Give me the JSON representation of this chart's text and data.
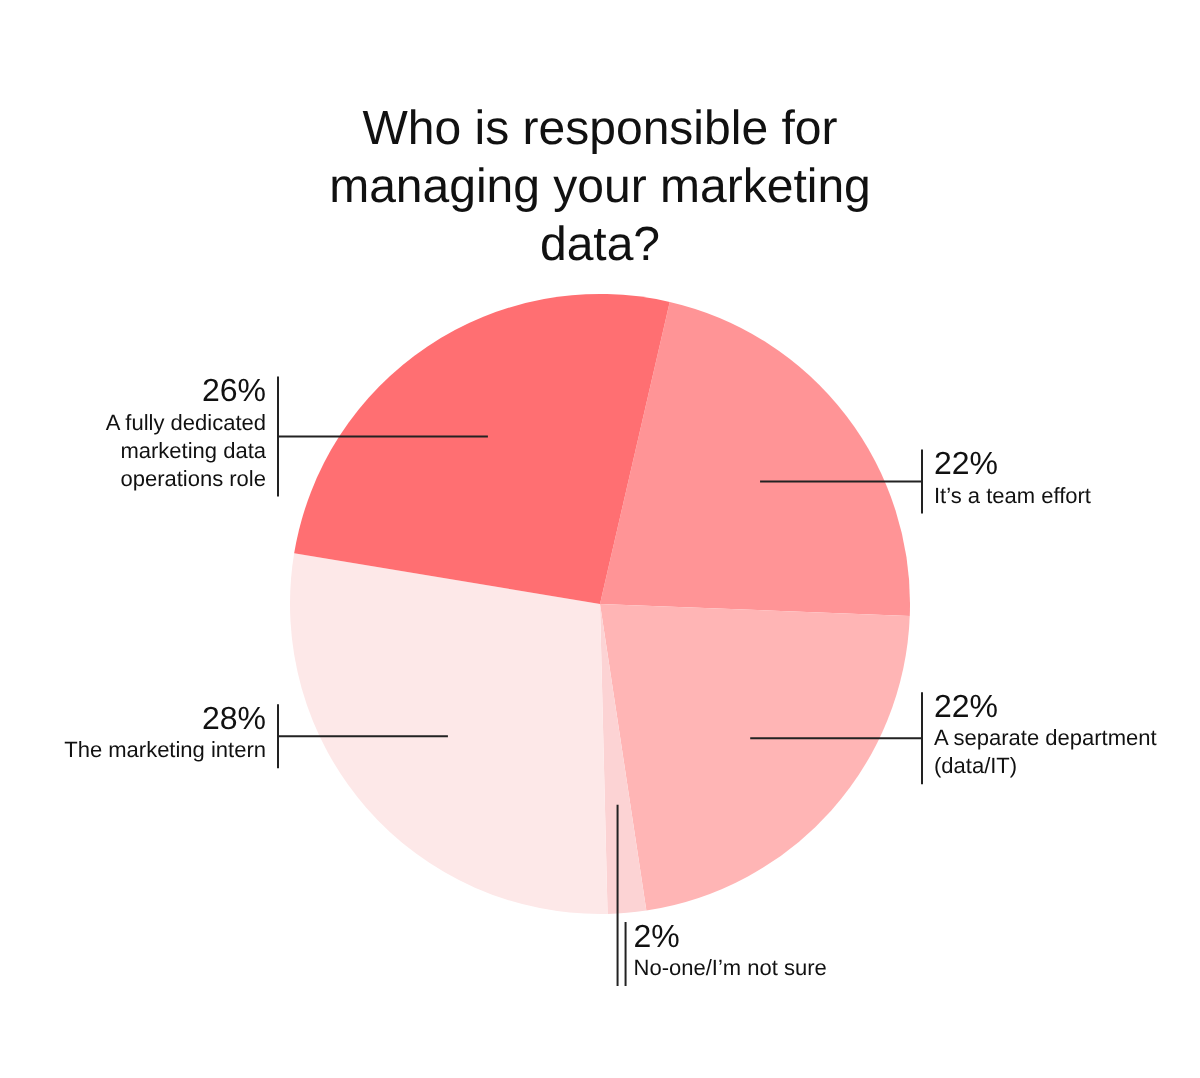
{
  "chart_data": {
    "type": "pie",
    "title": "Who is responsible for managing your marketing data?",
    "categories": [
      "It’s a team effort",
      "A separate department (data/IT)",
      "No-one/I’m not sure",
      "The marketing intern",
      "A fully dedicated marketing data operations role"
    ],
    "values": [
      22,
      22,
      2,
      28,
      26
    ],
    "value_labels": [
      "22%",
      "22%",
      "2%",
      "28%",
      "26%"
    ],
    "colors": [
      "#ff9496",
      "#ffb5b5",
      "#fcd3d4",
      "#fde8e8",
      "#ff6f72"
    ]
  }
}
